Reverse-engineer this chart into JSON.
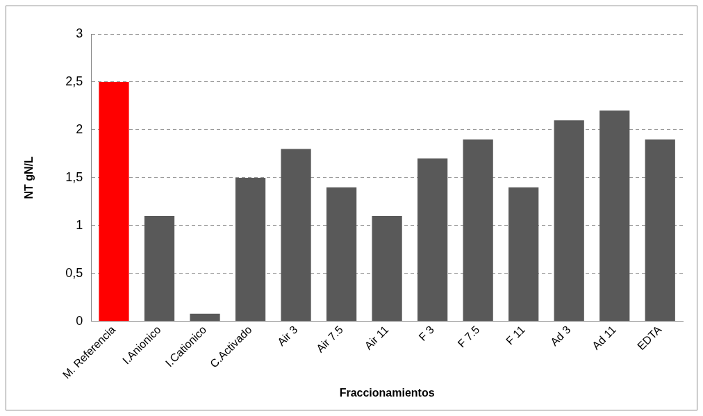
{
  "chart_data": {
    "type": "bar",
    "xlabel": "Fraccionamientos",
    "ylabel": "NT gN/L",
    "categories": [
      "M. Referencia",
      "I.Anionico",
      "I.Cationico",
      "C.Activado",
      "Air 3",
      "Air 7.5",
      "Air 11",
      "F 3",
      "F 7.5",
      "F 11",
      "Ad 3",
      "Ad 11",
      "EDTA"
    ],
    "values": [
      2.5,
      1.1,
      0.08,
      1.5,
      1.8,
      1.4,
      1.1,
      1.7,
      1.9,
      1.4,
      2.1,
      2.2,
      1.9
    ],
    "colors": [
      "#ff0000",
      "#595959",
      "#595959",
      "#595959",
      "#595959",
      "#595959",
      "#595959",
      "#595959",
      "#595959",
      "#595959",
      "#595959",
      "#595959",
      "#595959"
    ],
    "ylim": [
      0,
      3
    ],
    "yticks": [
      0,
      {
        "value": 0.5,
        "label": "0,5"
      },
      1,
      {
        "value": 1.5,
        "label": "1,5"
      },
      2,
      {
        "value": 2.5,
        "label": "2,5"
      },
      3
    ],
    "grid": "y"
  }
}
